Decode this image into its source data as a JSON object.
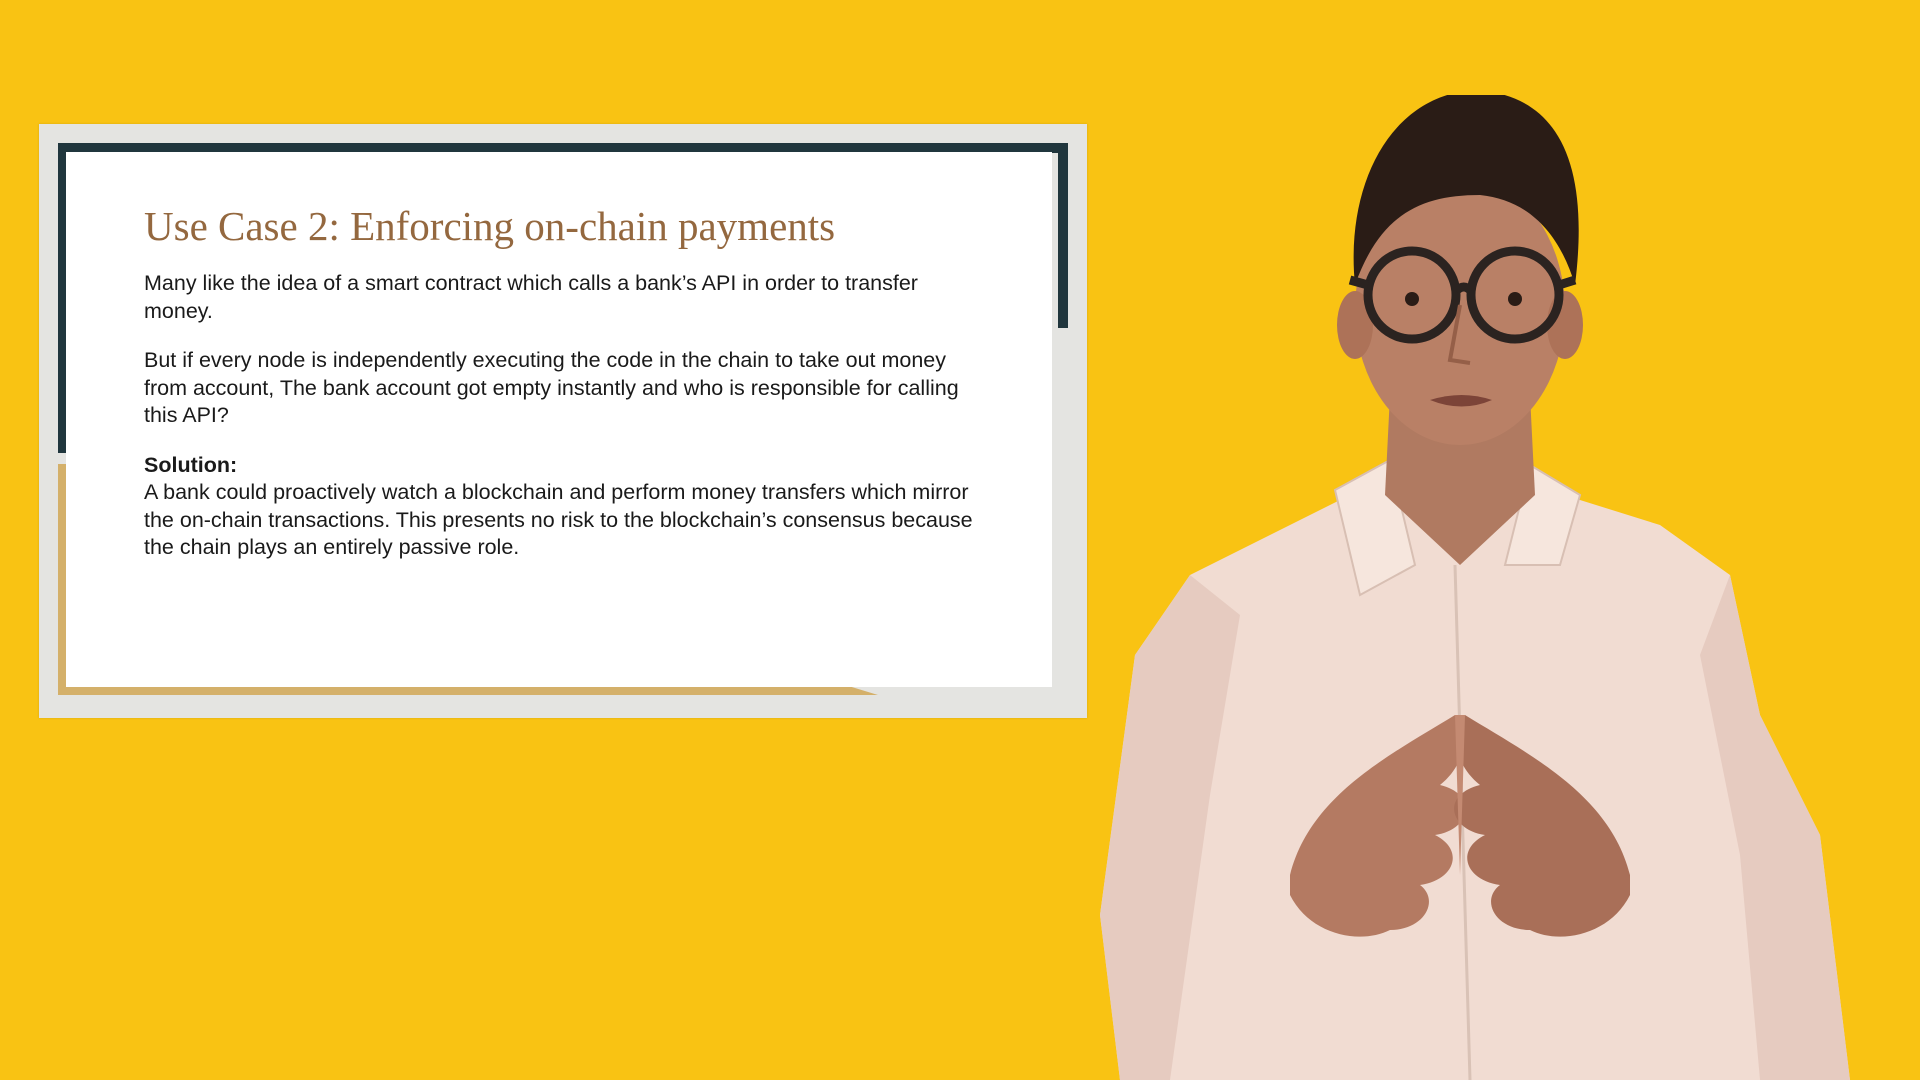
{
  "slide": {
    "title": "Use Case 2: Enforcing on-chain payments",
    "paragraph_1": "Many like the idea of a smart contract which calls a bank’s API in order to transfer money.",
    "paragraph_2": "But if every node is independently executing the code in the chain to take out money from account, The bank account got empty instantly and who is responsible for calling this API?",
    "solution_label": "Solution:",
    "solution_text": "A bank could proactively watch a blockchain and perform money transfers which mirror the on-chain transactions. This presents no risk to the blockchain’s consensus because the chain plays an entirely passive role."
  },
  "colors": {
    "background": "#f9c313",
    "title": "#94683f",
    "frame_dark": "#20363d",
    "frame_gold": "#d4b06a",
    "shirt": "#f1dcd2",
    "skin": "#b98066",
    "hair": "#2a1c16"
  },
  "presenter": {
    "icon": "presenter-photo"
  }
}
